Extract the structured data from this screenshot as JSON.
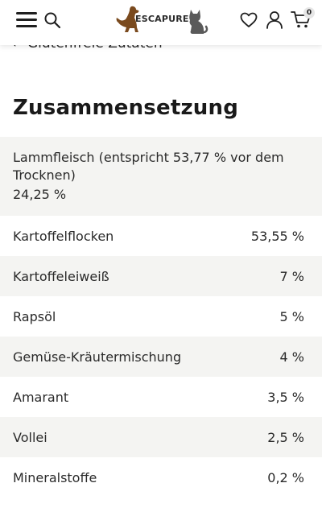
{
  "header": {
    "brand": "ESCAPURE",
    "cart_count": "0",
    "icons": [
      "menu-icon",
      "search-icon",
      "heart-icon",
      "user-icon",
      "cart-icon"
    ]
  },
  "back_link": {
    "label": "Glutenfreie Zutaten"
  },
  "composition": {
    "title": "Zusammensetzung",
    "rows": [
      {
        "name": "Lammfleisch (entspricht 53,77 % vor dem Trocknen)",
        "value": "24,25 %"
      },
      {
        "name": "Kartoffelflocken",
        "value": "53,55 %"
      },
      {
        "name": "Kartoffeleiweiß",
        "value": "7 %"
      },
      {
        "name": "Rapsöl",
        "value": "5 %"
      },
      {
        "name": "Gemüse-Kräutermischung",
        "value": "4 %"
      },
      {
        "name": "Amarant",
        "value": "3,5 %"
      },
      {
        "name": "Vollei",
        "value": "2,5 %"
      },
      {
        "name": "Mineralstoffe",
        "value": "0,2 %"
      }
    ]
  },
  "colors": {
    "text": "#1f1f1f",
    "row_shade": "#f4f4f2",
    "brand_brown": "#7a4a1e",
    "cat_gray": "#5a5a5a"
  }
}
